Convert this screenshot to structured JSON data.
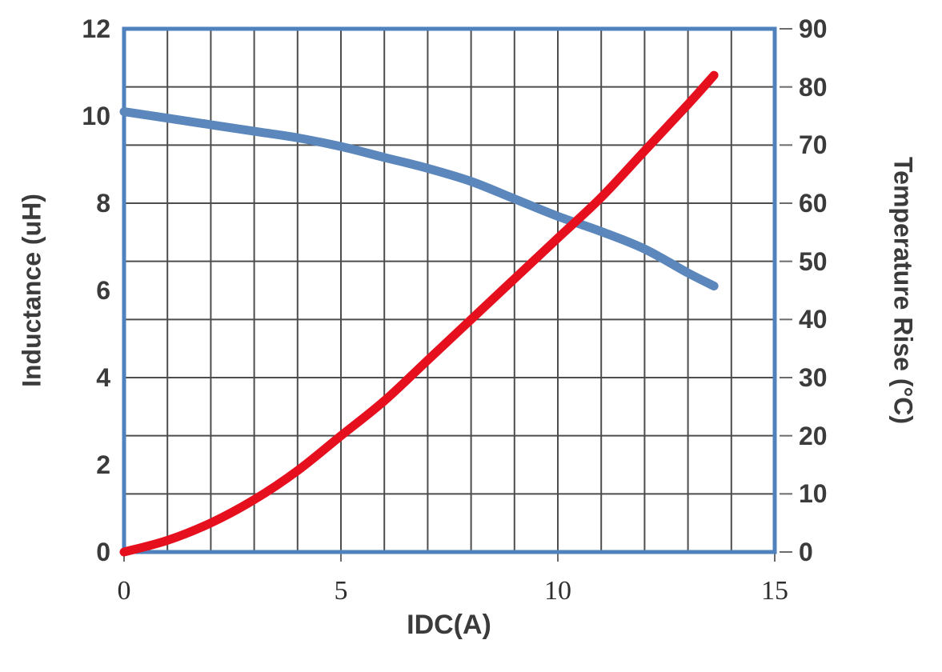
{
  "chart_data": {
    "type": "line",
    "title": "",
    "xlabel": "IDC(A)",
    "ylabel_left": "Inductance (uH)",
    "ylabel_right": "Temperature Rise (°C)",
    "x_range": [
      0,
      15
    ],
    "y_left_range": [
      0,
      12
    ],
    "y_right_range": [
      0,
      90
    ],
    "x_ticks": [
      0,
      5,
      10,
      15
    ],
    "y_left_ticks": [
      12,
      10,
      8,
      6,
      4,
      2,
      0
    ],
    "y_right_ticks": [
      90,
      80,
      70,
      60,
      50,
      40,
      30,
      20,
      10,
      0
    ],
    "x_grid_step": 1,
    "y_right_grid_step": 10,
    "grid": true,
    "legend": "none",
    "series": [
      {
        "name": "Inductance",
        "axis": "left",
        "color": "#5b87bc",
        "points": [
          [
            0,
            10.1
          ],
          [
            1,
            9.95
          ],
          [
            2,
            9.8
          ],
          [
            3,
            9.65
          ],
          [
            4,
            9.5
          ],
          [
            5,
            9.3
          ],
          [
            6,
            9.05
          ],
          [
            7,
            8.8
          ],
          [
            8,
            8.5
          ],
          [
            9,
            8.1
          ],
          [
            10,
            7.7
          ],
          [
            11,
            7.35
          ],
          [
            12,
            6.95
          ],
          [
            13,
            6.4
          ],
          [
            13.6,
            6.1
          ]
        ]
      },
      {
        "name": "Temperature Rise",
        "axis": "right",
        "color": "#e60f1e",
        "points": [
          [
            0,
            0
          ],
          [
            1,
            2
          ],
          [
            2,
            5
          ],
          [
            3,
            9
          ],
          [
            4,
            14
          ],
          [
            5,
            20
          ],
          [
            6,
            26
          ],
          [
            7,
            33
          ],
          [
            8,
            40
          ],
          [
            9,
            47
          ],
          [
            10,
            54
          ],
          [
            11,
            61
          ],
          [
            12,
            69
          ],
          [
            13,
            77
          ],
          [
            13.6,
            82
          ]
        ]
      }
    ]
  },
  "colors": {
    "plot_border": "#4f81bd",
    "gridline": "#4d4d4d",
    "tick_mark": "#6b6b6b",
    "text": "#3b3b3b"
  }
}
